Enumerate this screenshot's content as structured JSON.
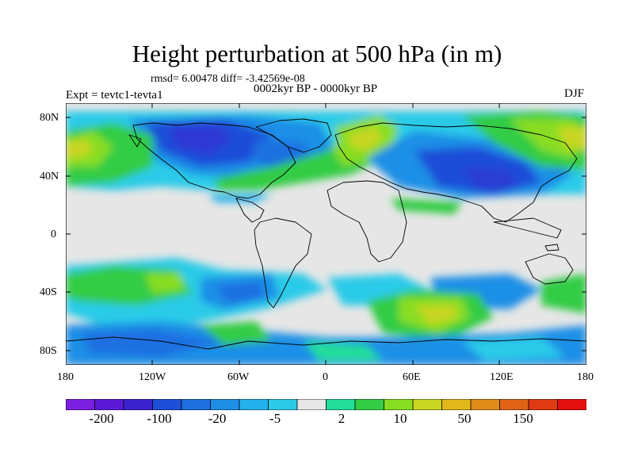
{
  "title": "Height perturbation at 500 hPa (in m)",
  "stats": "rmsd= 6.00478 diff= -3.42569e-08",
  "period": "0002kyr BP - 0000kyr BP",
  "experiment": "Expt = tevtc1-tevta1",
  "season": "DJF",
  "lat_ticks": [
    "80N",
    "40N",
    "0",
    "40S",
    "80S"
  ],
  "lon_ticks": [
    "180",
    "120W",
    "60W",
    "0",
    "60E",
    "120E",
    "180"
  ],
  "colorbar": {
    "labels": [
      "-200",
      "-100",
      "-20",
      "-5",
      "2",
      "10",
      "50",
      "150"
    ],
    "colors": [
      "#7b1fe0",
      "#5a1ad8",
      "#3b22cf",
      "#1f4ed8",
      "#1e6fe0",
      "#1f8fe6",
      "#24b0ea",
      "#2bcbe8",
      "#e6e6e6",
      "#22dd99",
      "#33cc44",
      "#88dd22",
      "#c8d621",
      "#e0b81a",
      "#e08c18",
      "#e06316",
      "#e03a14",
      "#e31010"
    ]
  },
  "map": {
    "background_color": "#e6e6e6",
    "features": [
      {
        "name": "north-america-negative",
        "color": "#1f4ed8"
      },
      {
        "name": "north-pacific-positive",
        "color": "#88dd22"
      },
      {
        "name": "europe-positive",
        "color": "#88dd22"
      },
      {
        "name": "asia-negative",
        "color": "#1f4ed8"
      },
      {
        "name": "southern-ocean-positive",
        "color": "#c8d621"
      }
    ]
  }
}
